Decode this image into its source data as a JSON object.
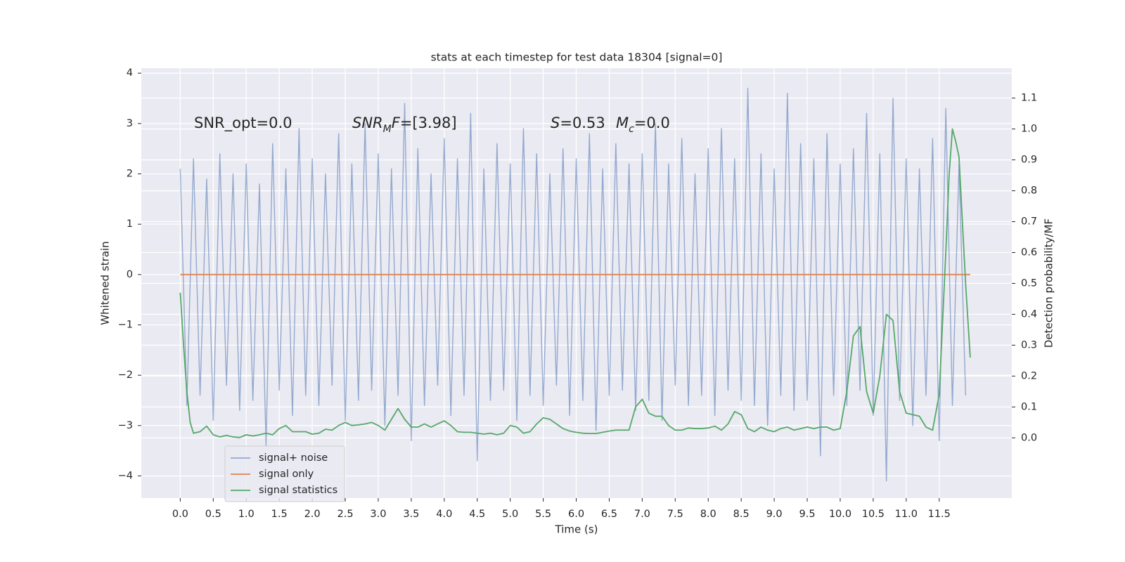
{
  "chart_data": {
    "type": "line",
    "title": "stats at each timestep for test data 18304 [signal=0]",
    "xlabel": "Time (s)",
    "ylabel": "Whitened strain",
    "y2label": "Detection probability/MF",
    "annotations": [
      [
        {
          "text": "SNR_opt=0.0",
          "style": "normal"
        }
      ],
      [
        {
          "text": "SNR",
          "style": "italic"
        },
        {
          "text": "M",
          "style": "italic-sub"
        },
        {
          "text": "F",
          "style": "italic"
        },
        {
          "text": "=[3.98]",
          "style": "normal"
        }
      ],
      [
        {
          "text": "S",
          "style": "italic"
        },
        {
          "text": "=0.53",
          "style": "normal"
        }
      ],
      [
        {
          "text": "M",
          "style": "italic"
        },
        {
          "text": "c",
          "style": "italic-sub"
        },
        {
          "text": "=0.0",
          "style": "normal"
        }
      ]
    ],
    "grid": true,
    "legend": "lower left",
    "background": "#eaeaf2",
    "xlim": [
      -0.59,
      12.6
    ],
    "ylim": [
      -4.44,
      4.1
    ],
    "y2lim": [
      -0.195,
      1.197
    ],
    "xticks": [
      {
        "value": 0,
        "label": "0.0"
      },
      {
        "value": 0.5,
        "label": "0.5"
      },
      {
        "value": 1,
        "label": "1.0"
      },
      {
        "value": 1.5,
        "label": "1.5"
      },
      {
        "value": 2,
        "label": "2.0"
      },
      {
        "value": 2.5,
        "label": "2.5"
      },
      {
        "value": 3,
        "label": "3.0"
      },
      {
        "value": 3.5,
        "label": "3.5"
      },
      {
        "value": 4,
        "label": "4.0"
      },
      {
        "value": 4.5,
        "label": "4.5"
      },
      {
        "value": 5,
        "label": "5.0"
      },
      {
        "value": 5.5,
        "label": "5.5"
      },
      {
        "value": 6,
        "label": "6.0"
      },
      {
        "value": 6.5,
        "label": "6.5"
      },
      {
        "value": 7,
        "label": "7.0"
      },
      {
        "value": 7.5,
        "label": "7.5"
      },
      {
        "value": 8,
        "label": "8.0"
      },
      {
        "value": 8.5,
        "label": "8.5"
      },
      {
        "value": 9,
        "label": "9.0"
      },
      {
        "value": 9.5,
        "label": "9.5"
      },
      {
        "value": 10,
        "label": "10.0"
      },
      {
        "value": 10.5,
        "label": "10.5"
      },
      {
        "value": 11,
        "label": "11.0"
      },
      {
        "value": 11.5,
        "label": "11.5"
      }
    ],
    "yticks": [
      {
        "value": -4,
        "label": "−4"
      },
      {
        "value": -3,
        "label": "−3"
      },
      {
        "value": -2,
        "label": "−2"
      },
      {
        "value": -1,
        "label": "−1"
      },
      0,
      1,
      2,
      3,
      4
    ],
    "y2ticks": [
      {
        "value": 0,
        "label": "0.0"
      },
      {
        "value": 0.1,
        "label": "0.1"
      },
      {
        "value": 0.2,
        "label": "0.2"
      },
      {
        "value": 0.3,
        "label": "0.3"
      },
      {
        "value": 0.4,
        "label": "0.4"
      },
      {
        "value": 0.5,
        "label": "0.5"
      },
      {
        "value": 0.6,
        "label": "0.6"
      },
      {
        "value": 0.7,
        "label": "0.7"
      },
      {
        "value": 0.8,
        "label": "0.8"
      },
      {
        "value": 0.9,
        "label": "0.9"
      },
      {
        "value": 1,
        "label": "1.0"
      },
      {
        "value": 1.1,
        "label": "1.1"
      }
    ],
    "series": [
      {
        "name": "signal+ noise",
        "color": "#4c72b0",
        "opacity": 0.55,
        "x": [
          0,
          0.1,
          0.2,
          0.3,
          0.4,
          0.5,
          0.6,
          0.7,
          0.8,
          0.9,
          1,
          1.1,
          1.2,
          1.3,
          1.4,
          1.5,
          1.6,
          1.7,
          1.8,
          1.9,
          2,
          2.1,
          2.2,
          2.3,
          2.4,
          2.5,
          2.6,
          2.7,
          2.8,
          2.9,
          3,
          3.1,
          3.2,
          3.3,
          3.4,
          3.5,
          3.6,
          3.7,
          3.8,
          3.9,
          4,
          4.1,
          4.2,
          4.3,
          4.4,
          4.5,
          4.6,
          4.7,
          4.8,
          4.9,
          5,
          5.1,
          5.2,
          5.3,
          5.4,
          5.5,
          5.6,
          5.7,
          5.8,
          5.9,
          6,
          6.1,
          6.2,
          6.3,
          6.4,
          6.5,
          6.6,
          6.7,
          6.8,
          6.9,
          7,
          7.1,
          7.2,
          7.3,
          7.4,
          7.5,
          7.6,
          7.7,
          7.8,
          7.9,
          8,
          8.1,
          8.2,
          8.3,
          8.4,
          8.5,
          8.6,
          8.7,
          8.8,
          8.9,
          9,
          9.1,
          9.2,
          9.3,
          9.4,
          9.5,
          9.6,
          9.7,
          9.8,
          9.9,
          10,
          10.1,
          10.2,
          10.3,
          10.4,
          10.5,
          10.6,
          10.7,
          10.8,
          10.9,
          11,
          11.1,
          11.2,
          11.3,
          11.4,
          11.5,
          11.6,
          11.7,
          11.8,
          11.9
        ],
        "values": [
          2.1,
          -2.6,
          2.3,
          -2.4,
          1.9,
          -2.9,
          2.4,
          -2.2,
          2.0,
          -2.7,
          2.2,
          -2.5,
          1.8,
          -3.4,
          2.6,
          -2.3,
          2.1,
          -2.8,
          2.9,
          -2.4,
          2.3,
          -2.6,
          2.0,
          -2.2,
          2.8,
          -2.9,
          2.2,
          -2.5,
          3.0,
          -2.3,
          2.4,
          -3.0,
          2.1,
          -2.4,
          3.4,
          -3.3,
          2.5,
          -2.6,
          2.0,
          -2.2,
          2.7,
          -2.8,
          2.3,
          -2.4,
          3.2,
          -3.7,
          2.1,
          -2.5,
          2.6,
          -2.3,
          2.2,
          -2.9,
          2.9,
          -2.4,
          2.4,
          -2.6,
          2.0,
          -2.2,
          2.5,
          -2.8,
          2.3,
          -2.5,
          2.8,
          -3.1,
          2.1,
          -2.4,
          2.6,
          -2.3,
          2.2,
          -2.7,
          2.4,
          -2.5,
          3.0,
          -2.9,
          2.2,
          -2.2,
          2.7,
          -2.6,
          2.0,
          -2.4,
          2.5,
          -2.8,
          2.9,
          -2.3,
          2.3,
          -2.5,
          3.7,
          -2.6,
          2.4,
          -3.0,
          2.1,
          -2.4,
          3.6,
          -2.7,
          2.6,
          -2.5,
          2.3,
          -3.6,
          2.8,
          -2.4,
          2.2,
          -2.6,
          2.5,
          -2.3,
          3.2,
          -2.8,
          2.4,
          -4.1,
          3.5,
          -2.5,
          2.3,
          -3.0,
          2.1,
          -2.4,
          2.7,
          -3.3,
          3.3,
          -2.6,
          2.2,
          -2.4
        ]
      },
      {
        "name": "signal only",
        "color": "#dd8452",
        "x": [
          0,
          11.97
        ],
        "values": [
          0,
          0
        ]
      },
      {
        "name": "signal statistics",
        "color": "#55a868",
        "axis": "y2",
        "x": [
          0,
          0.05,
          0.1,
          0.15,
          0.2,
          0.3,
          0.4,
          0.5,
          0.6,
          0.7,
          0.8,
          0.9,
          1.0,
          1.1,
          1.2,
          1.3,
          1.4,
          1.5,
          1.6,
          1.7,
          1.8,
          1.9,
          2.0,
          2.1,
          2.2,
          2.3,
          2.4,
          2.5,
          2.6,
          2.7,
          2.8,
          2.9,
          3.0,
          3.1,
          3.2,
          3.3,
          3.4,
          3.5,
          3.6,
          3.7,
          3.8,
          3.9,
          4.0,
          4.1,
          4.2,
          4.3,
          4.4,
          4.5,
          4.6,
          4.7,
          4.8,
          4.9,
          5.0,
          5.1,
          5.2,
          5.3,
          5.4,
          5.5,
          5.6,
          5.7,
          5.8,
          5.9,
          6.0,
          6.1,
          6.2,
          6.3,
          6.4,
          6.5,
          6.6,
          6.7,
          6.8,
          6.9,
          7.0,
          7.1,
          7.2,
          7.3,
          7.4,
          7.5,
          7.6,
          7.7,
          7.8,
          7.9,
          8.0,
          8.1,
          8.2,
          8.3,
          8.4,
          8.5,
          8.6,
          8.7,
          8.8,
          8.9,
          9.0,
          9.1,
          9.2,
          9.3,
          9.4,
          9.5,
          9.6,
          9.7,
          9.8,
          9.9,
          10.0,
          10.1,
          10.2,
          10.3,
          10.4,
          10.5,
          10.6,
          10.7,
          10.8,
          10.9,
          11.0,
          11.1,
          11.2,
          11.3,
          11.4,
          11.5,
          11.6,
          11.65,
          11.7,
          11.75,
          11.8,
          11.9,
          11.97
        ],
        "values": [
          0.47,
          0.3,
          0.15,
          0.05,
          0.015,
          0.02,
          0.038,
          0.01,
          0.003,
          0.008,
          0.003,
          0.001,
          0.01,
          0.006,
          0.01,
          0.015,
          0.01,
          0.03,
          0.04,
          0.02,
          0.02,
          0.02,
          0.012,
          0.015,
          0.028,
          0.025,
          0.04,
          0.05,
          0.04,
          0.042,
          0.045,
          0.05,
          0.04,
          0.025,
          0.06,
          0.095,
          0.06,
          0.035,
          0.035,
          0.045,
          0.035,
          0.045,
          0.055,
          0.04,
          0.02,
          0.018,
          0.018,
          0.015,
          0.012,
          0.015,
          0.01,
          0.015,
          0.04,
          0.035,
          0.015,
          0.02,
          0.045,
          0.065,
          0.06,
          0.045,
          0.03,
          0.022,
          0.018,
          0.015,
          0.014,
          0.014,
          0.018,
          0.022,
          0.025,
          0.025,
          0.025,
          0.1,
          0.125,
          0.08,
          0.07,
          0.07,
          0.04,
          0.025,
          0.025,
          0.032,
          0.03,
          0.03,
          0.032,
          0.038,
          0.025,
          0.045,
          0.085,
          0.075,
          0.03,
          0.02,
          0.035,
          0.025,
          0.02,
          0.03,
          0.035,
          0.025,
          0.03,
          0.035,
          0.03,
          0.035,
          0.035,
          0.025,
          0.03,
          0.15,
          0.33,
          0.36,
          0.15,
          0.08,
          0.2,
          0.4,
          0.38,
          0.15,
          0.08,
          0.075,
          0.07,
          0.035,
          0.025,
          0.14,
          0.6,
          0.85,
          1.0,
          0.96,
          0.91,
          0.5,
          0.26
        ]
      }
    ]
  }
}
